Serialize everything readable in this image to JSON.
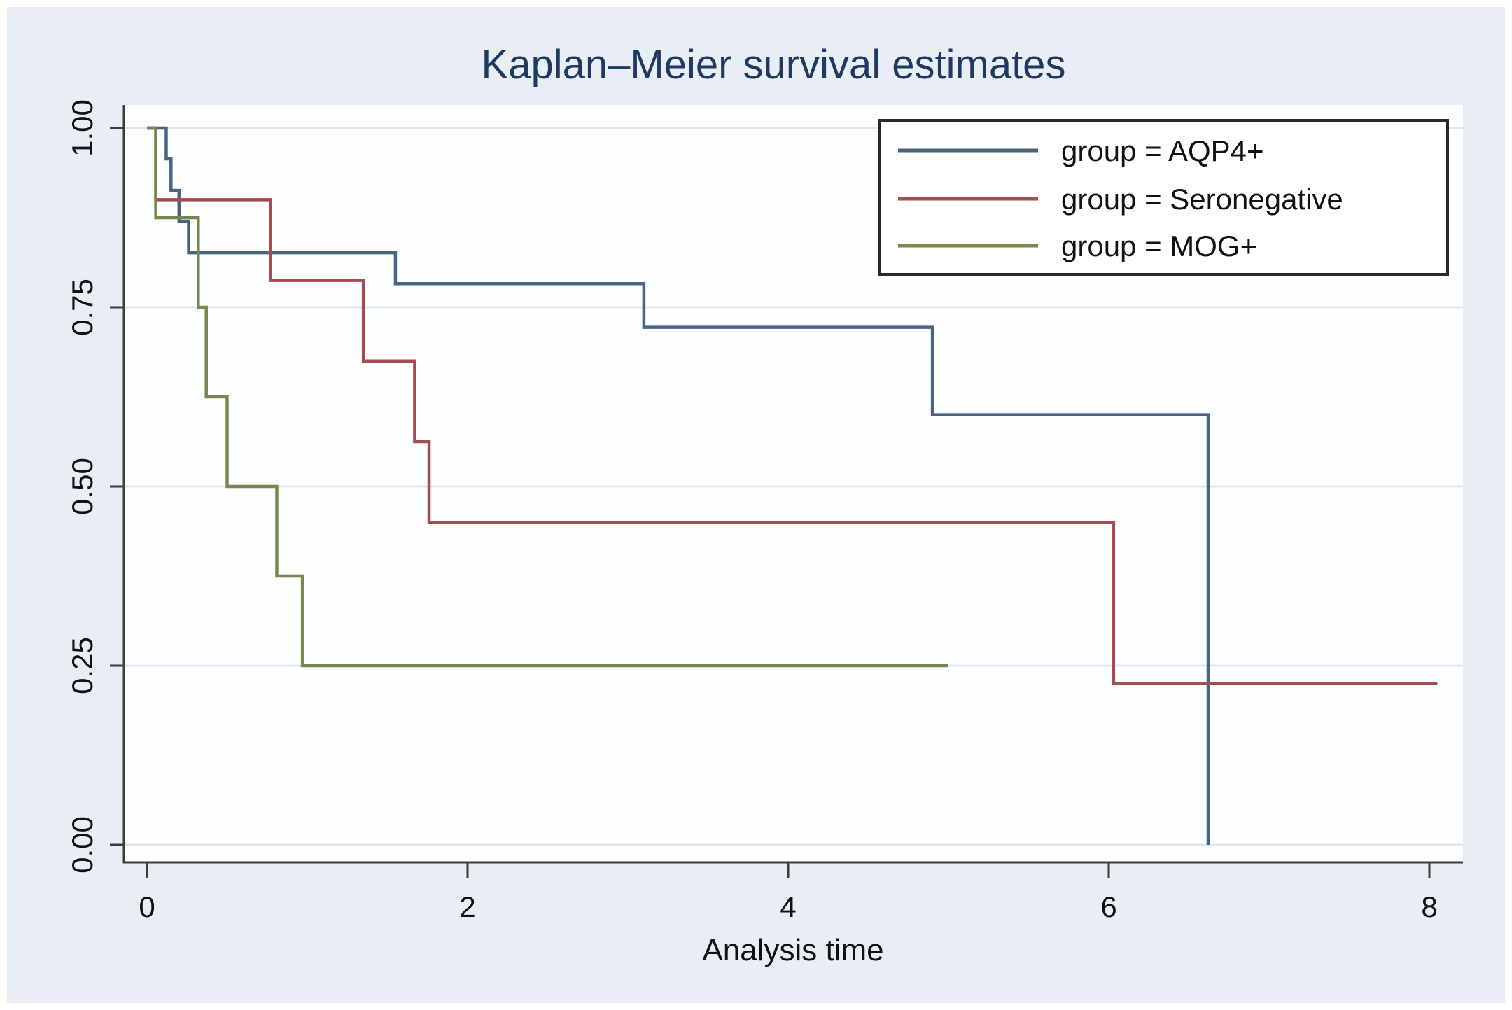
{
  "page": {
    "background_color": "#e8eef3",
    "plot_background_color": "#fdfeff",
    "gridline_color": "#dde8f0",
    "axis_color": "#3c3c3c",
    "title_color": "#1e3a63"
  },
  "chart_data": {
    "type": "line",
    "subtype": "kaplan-meier-step",
    "title": "Kaplan–Meier survival estimates",
    "xlabel": "Analysis time",
    "ylabel": "",
    "xlim": [
      0,
      8.3
    ],
    "ylim": [
      0,
      1
    ],
    "x_ticks": [
      0,
      2,
      4,
      6,
      8
    ],
    "y_tick_labels": [
      "0.00",
      "0.25",
      "0.50",
      "0.75",
      "1.00"
    ],
    "y_tick_values": [
      0,
      0.25,
      0.5,
      0.75,
      1
    ],
    "grid": true,
    "legend_position": "top-right-inside",
    "series": [
      {
        "name": "group = AQP4+",
        "color": "#486480",
        "km_steps": [
          [
            0,
            1
          ],
          [
            0.12,
            0.957
          ],
          [
            0.15,
            0.913
          ],
          [
            0.2,
            0.87
          ],
          [
            0.26,
            0.826
          ],
          [
            1.55,
            0.783
          ],
          [
            3.1,
            0.722
          ],
          [
            4.9,
            0.6
          ],
          [
            6.62,
            0
          ]
        ],
        "t_end": 6.62
      },
      {
        "name": "group = Seronegative",
        "color": "#a34d52",
        "km_steps": [
          [
            0,
            1
          ],
          [
            0.055,
            0.9
          ],
          [
            0.77,
            0.7875
          ],
          [
            1.35,
            0.675
          ],
          [
            1.67,
            0.5625
          ],
          [
            1.76,
            0.45
          ],
          [
            6.03,
            0.225
          ]
        ],
        "t_end": 8.05
      },
      {
        "name": "group = MOG+",
        "color": "#75894e",
        "km_steps": [
          [
            0,
            1
          ],
          [
            0.055,
            0.875
          ],
          [
            0.32,
            0.75
          ],
          [
            0.37,
            0.625
          ],
          [
            0.5,
            0.5
          ],
          [
            0.81,
            0.375
          ],
          [
            0.97,
            0.25
          ]
        ],
        "t_end": 5.0
      }
    ]
  }
}
